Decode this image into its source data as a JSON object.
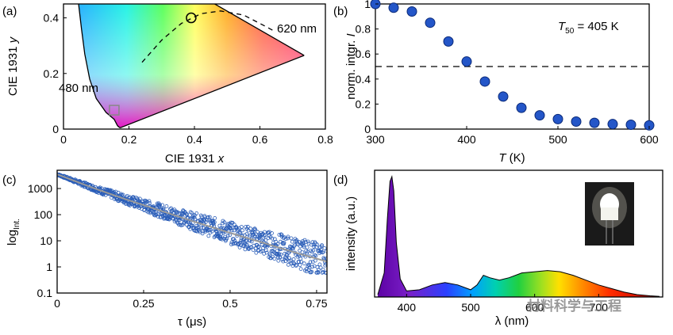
{
  "figure": {
    "watermark": "材料科学与工程"
  },
  "chart_data": [
    {
      "panel": "(a)",
      "type": "scatter",
      "title": "",
      "xlabel": "CIE 1931 x",
      "ylabel": "CIE 1931 y",
      "xlim": [
        0,
        0.8
      ],
      "ylim": [
        0,
        0.45
      ],
      "xticks": [
        "0",
        "0.2",
        "0.4",
        "0.6",
        "0.8"
      ],
      "yticks": [
        "0",
        "0.2",
        "0.4"
      ],
      "grid": false,
      "annotations": [
        "620 nm",
        "480 nm"
      ],
      "markers": [
        {
          "shape": "circle",
          "x": 0.39,
          "y": 0.4
        },
        {
          "shape": "square",
          "x": 0.155,
          "y": 0.068
        }
      ],
      "dashed_curve": [
        [
          0.24,
          0.24
        ],
        [
          0.3,
          0.32
        ],
        [
          0.36,
          0.38
        ],
        [
          0.42,
          0.415
        ],
        [
          0.48,
          0.425
        ],
        [
          0.55,
          0.41
        ],
        [
          0.6,
          0.38
        ],
        [
          0.64,
          0.355
        ]
      ]
    },
    {
      "panel": "(b)",
      "type": "scatter",
      "title": "",
      "xlabel": "T (K)",
      "ylabel": "norm. intgr. I",
      "xlim": [
        300,
        600
      ],
      "ylim": [
        0,
        1
      ],
      "xticks": [
        "300",
        "400",
        "500",
        "600"
      ],
      "yticks": [
        "0",
        "0.2",
        "0.4",
        "0.6",
        "0.8",
        "1"
      ],
      "grid": false,
      "annotation": "T50 = 405 K",
      "hline": 0.5,
      "series": [
        {
          "x": [
            300,
            320,
            340,
            360,
            380,
            400,
            420,
            440,
            460,
            480,
            500,
            520,
            540,
            560,
            580,
            600
          ],
          "y": [
            1.0,
            0.97,
            0.94,
            0.85,
            0.7,
            0.54,
            0.38,
            0.26,
            0.17,
            0.11,
            0.08,
            0.06,
            0.05,
            0.04,
            0.035,
            0.03
          ]
        }
      ]
    },
    {
      "panel": "(c)",
      "type": "scatter",
      "title": "",
      "xlabel": "τ (μs)",
      "ylabel": "log Int.",
      "xlim": [
        0,
        0.78
      ],
      "ylim": [
        0.1,
        5000
      ],
      "yscale": "log",
      "xticks": [
        "0",
        "0.25",
        "0.5",
        "0.75"
      ],
      "yticks": [
        "1000",
        "100",
        "10",
        "1",
        "0.1"
      ],
      "grid": false,
      "series": [
        {
          "name": "",
          "type": "scatter",
          "x": [
            0,
            0.1,
            0.2,
            0.3,
            0.4,
            0.5,
            0.6,
            0.7,
            0.78
          ],
          "y": [
            3500,
            1100,
            380,
            140,
            52,
            20,
            8,
            3.2,
            1.6
          ]
        },
        {
          "name": "",
          "type": "line",
          "x": [
            0,
            0.1,
            0.2,
            0.3,
            0.4,
            0.5,
            0.6,
            0.7,
            0.78
          ],
          "y": [
            3500,
            1100,
            380,
            140,
            52,
            20,
            8,
            3.2,
            1.6
          ]
        }
      ]
    },
    {
      "panel": "(d)",
      "type": "area",
      "title": "",
      "xlabel": "λ (nm)",
      "ylabel": "intensity (a.u.)",
      "xlim": [
        350,
        800
      ],
      "xticks": [
        "400",
        "500",
        "600",
        "700"
      ],
      "grid": false,
      "series": [
        {
          "name": "",
          "x": [
            355,
            365,
            370,
            374,
            377,
            380,
            384,
            390,
            400,
            420,
            440,
            460,
            480,
            500,
            510,
            520,
            530,
            545,
            560,
            580,
            600,
            620,
            640,
            660,
            680,
            700,
            720,
            740,
            760,
            780,
            795
          ],
          "y": [
            0.02,
            0.2,
            0.65,
            0.96,
            1.0,
            0.88,
            0.45,
            0.15,
            0.05,
            0.06,
            0.1,
            0.12,
            0.1,
            0.06,
            0.1,
            0.18,
            0.16,
            0.14,
            0.16,
            0.2,
            0.21,
            0.22,
            0.21,
            0.18,
            0.14,
            0.1,
            0.07,
            0.04,
            0.02,
            0.01,
            0.005
          ]
        }
      ]
    }
  ]
}
